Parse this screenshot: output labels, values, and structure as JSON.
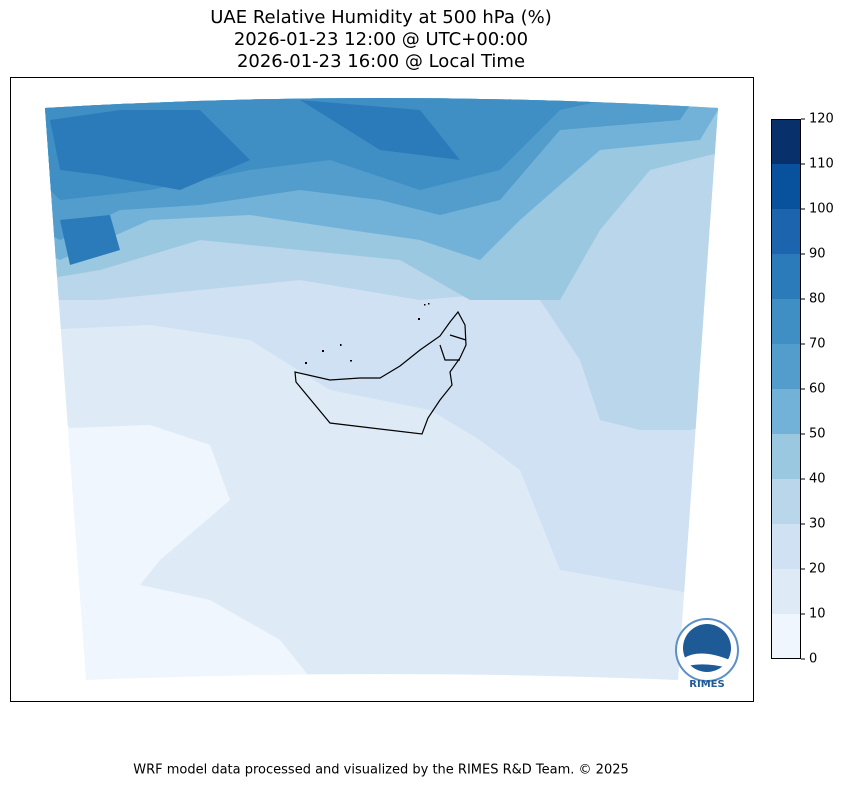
{
  "title": [
    "UAE Relative Humidity at 500 hPa (%)",
    "2026-01-23 12:00 @ UTC+00:00",
    "2026-01-23 16:00 @ Local Time"
  ],
  "colorbar": {
    "levels": [
      0,
      10,
      20,
      30,
      40,
      50,
      60,
      70,
      80,
      90,
      100,
      110,
      120
    ],
    "colors": [
      "#f0f6fd",
      "#deebf7",
      "#cfe1f2",
      "#b9d6ea",
      "#9ac8e0",
      "#72b2d8",
      "#529dcc",
      "#3f8fc5",
      "#2b7bba",
      "#1c64ad",
      "#08519c",
      "#08306b"
    ]
  },
  "logo": "RIMES",
  "footer": "WRF model data processed and visualized by the RIMES R&D Team. © 2025"
}
